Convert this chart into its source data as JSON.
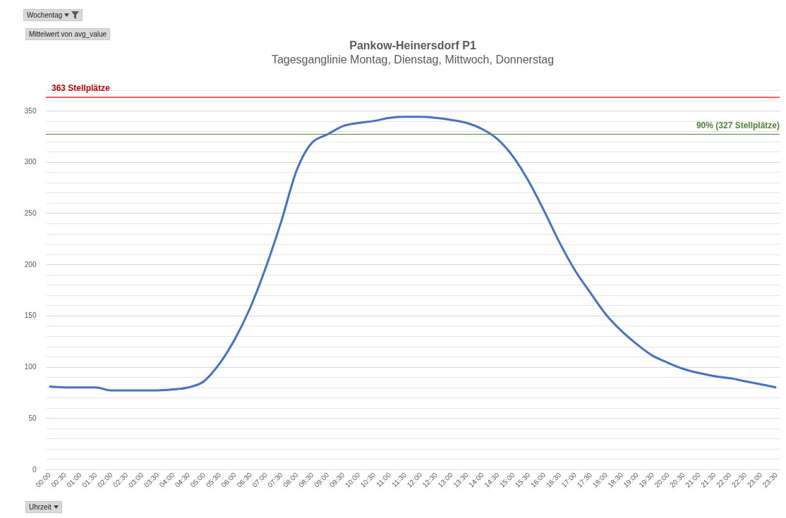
{
  "chart_data": {
    "type": "line",
    "title": "Pankow-Heinersdorf P1",
    "subtitle": "Tagesganglinie Montag, Dienstag, Mittwoch, Donnerstag",
    "categories": [
      "00:00",
      "00:30",
      "01:00",
      "01:30",
      "02:00",
      "02:30",
      "03:00",
      "03:30",
      "04:00",
      "04:30",
      "05:00",
      "05:30",
      "06:00",
      "06:30",
      "07:00",
      "07:30",
      "08:00",
      "08:30",
      "09:00",
      "09:30",
      "10:00",
      "10:30",
      "11:00",
      "11:30",
      "12:00",
      "12:30",
      "13:00",
      "13:30",
      "14:00",
      "14:30",
      "15:00",
      "15:30",
      "16:00",
      "16:30",
      "17:00",
      "17:30",
      "18:00",
      "18:30",
      "19:00",
      "19:30",
      "20:00",
      "20:30",
      "21:00",
      "21:30",
      "22:00",
      "22:30",
      "23:00",
      "23:30"
    ],
    "series": [
      {
        "color": "#4472c4",
        "values": [
          81,
          80,
          80,
          80,
          77,
          77,
          77,
          77,
          78,
          80,
          86,
          103,
          127,
          158,
          197,
          242,
          292,
          319,
          327,
          335,
          338,
          340,
          343,
          344,
          344,
          343,
          341,
          338,
          332,
          322,
          305,
          281,
          252,
          221,
          194,
          172,
          151,
          135,
          122,
          111,
          104,
          98,
          94,
          91,
          89,
          86,
          83,
          80
        ]
      }
    ],
    "ylim": [
      0,
      370
    ],
    "yticks": [
      0,
      {
        "value": 10,
        "label": null
      },
      {
        "value": 20,
        "label": null
      },
      {
        "value": 30,
        "label": null
      },
      {
        "value": 40,
        "label": null
      },
      50,
      {
        "value": 60,
        "label": null
      },
      {
        "value": 70,
        "label": null
      },
      {
        "value": 80,
        "label": null
      },
      {
        "value": 90,
        "label": null
      },
      100,
      {
        "value": 110,
        "label": null
      },
      {
        "value": 120,
        "label": null
      },
      {
        "value": 130,
        "label": null
      },
      {
        "value": 140,
        "label": null
      },
      150,
      {
        "value": 160,
        "label": null
      },
      {
        "value": 170,
        "label": null
      },
      {
        "value": 180,
        "label": null
      },
      {
        "value": 190,
        "label": null
      },
      200,
      {
        "value": 210,
        "label": null
      },
      {
        "value": 220,
        "label": null
      },
      {
        "value": 230,
        "label": null
      },
      {
        "value": 240,
        "label": null
      },
      250,
      {
        "value": 260,
        "label": null
      },
      {
        "value": 270,
        "label": null
      },
      {
        "value": 280,
        "label": null
      },
      {
        "value": 290,
        "label": null
      },
      300,
      {
        "value": 310,
        "label": null
      },
      {
        "value": 320,
        "label": null
      },
      {
        "value": 330,
        "label": null
      },
      {
        "value": 340,
        "label": null
      },
      350,
      {
        "value": 360,
        "label": null
      },
      {
        "value": 370,
        "label": null
      }
    ],
    "grid": "y",
    "ref_lines": [
      {
        "axis": "y",
        "value": 363,
        "label": "363 Stellplätze",
        "color": "#ff0000"
      },
      {
        "axis": "y",
        "value": 327,
        "label": "90% (327 Stellplätze)",
        "color": "#548235"
      }
    ],
    "annotations": [
      "Wochentag",
      "Mittelwert von avg_value",
      "Uhrzeit"
    ]
  }
}
